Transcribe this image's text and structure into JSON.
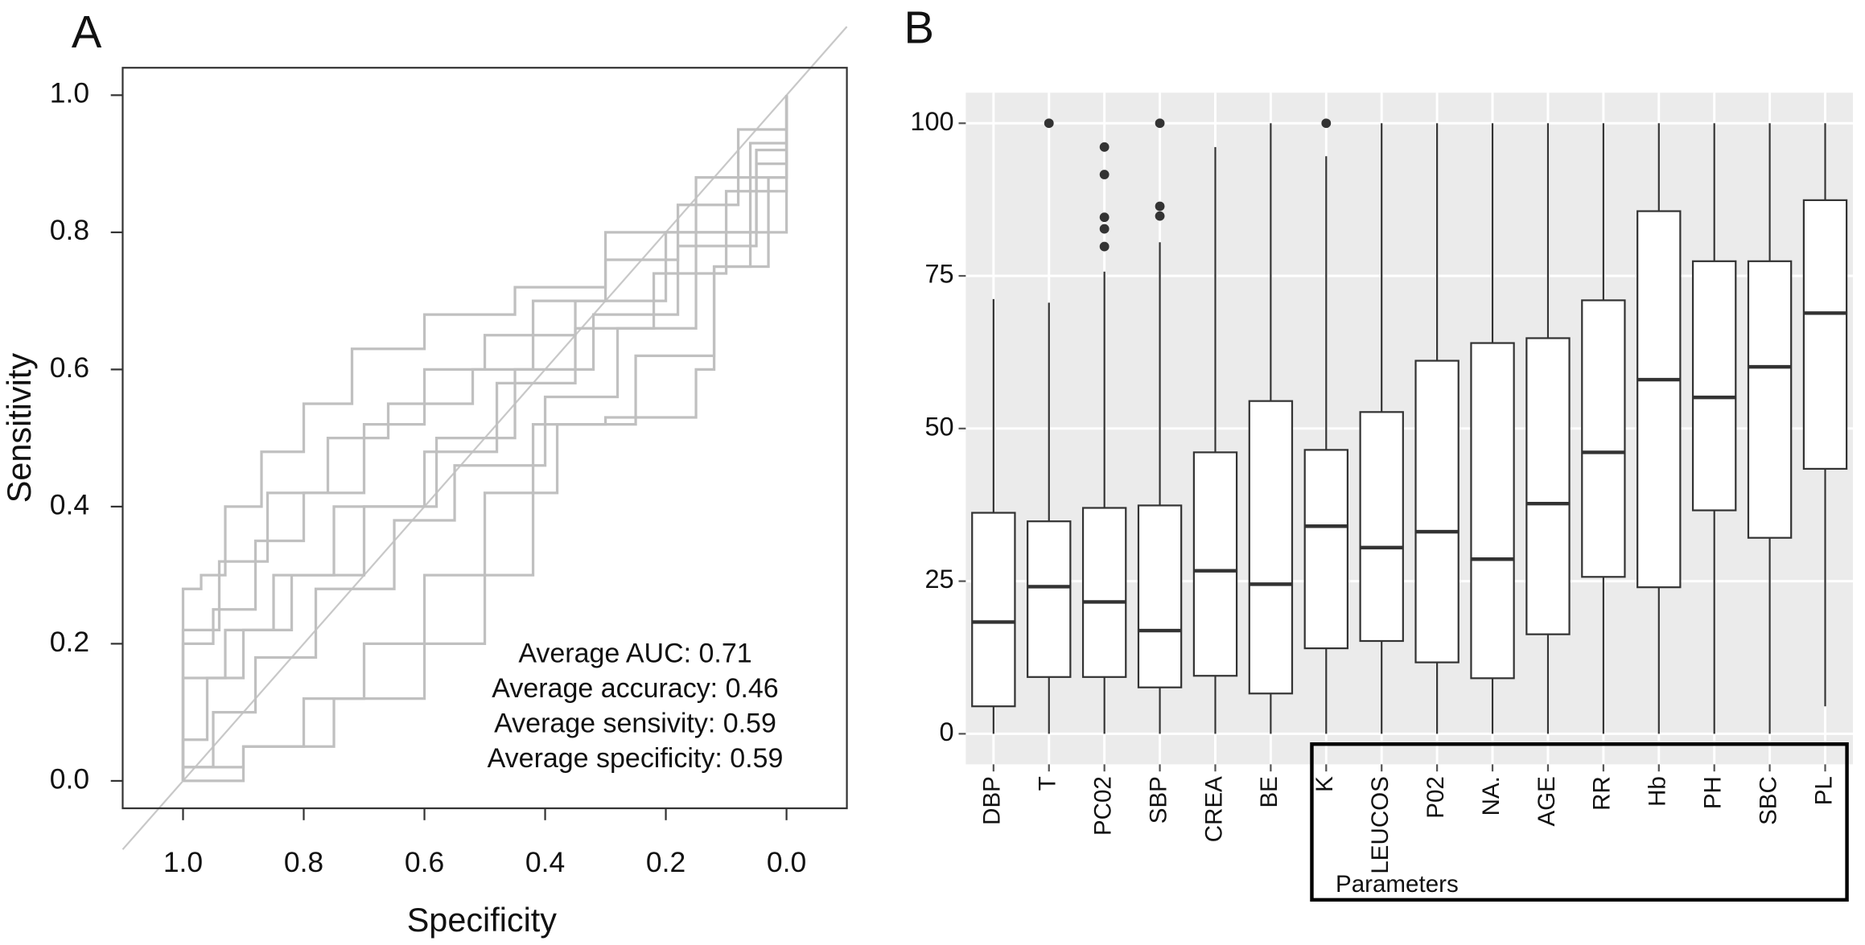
{
  "chart_data": [
    {
      "type": "roc",
      "panel_label": "A",
      "x_label": "Specificity",
      "y_label": "Sensitivity",
      "xlim": [
        1.1,
        -0.1
      ],
      "ylim": [
        -0.04,
        1.04
      ],
      "xticks": [
        {
          "value": 1,
          "label": "1.0"
        },
        0.8,
        0.6,
        0.4,
        0.2,
        {
          "value": 0,
          "label": "0.0"
        }
      ],
      "yticks": [
        {
          "value": 0,
          "label": "0.0"
        },
        0.2,
        0.4,
        0.6,
        0.8,
        {
          "value": 1,
          "label": "1.0"
        }
      ],
      "reference_line": true,
      "annotations": [
        "Average AUC: 0.71",
        "Average accuracy: 0.46",
        "Average sensivity: 0.59",
        "Average specificity: 0.59"
      ],
      "series": [
        {
          "color": "#c0c0c0",
          "x": [
            1,
            1,
            0.97,
            0.97,
            0.93,
            0.93,
            0.87,
            0.87,
            0.8,
            0.8,
            0.72,
            0.72,
            0.6,
            0.6,
            0.45,
            0.45,
            0.3,
            0.3,
            0.15,
            0.15,
            0,
            0
          ],
          "values": [
            0,
            0.28,
            0.28,
            0.3,
            0.3,
            0.4,
            0.4,
            0.48,
            0.48,
            0.55,
            0.55,
            0.63,
            0.63,
            0.68,
            0.68,
            0.72,
            0.72,
            0.8,
            0.8,
            0.88,
            0.88,
            1
          ]
        },
        {
          "color": "#c0c0c0",
          "x": [
            1,
            1,
            0.95,
            0.95,
            0.88,
            0.88,
            0.8,
            0.8,
            0.7,
            0.7,
            0.6,
            0.6,
            0.5,
            0.5,
            0.35,
            0.35,
            0.2,
            0.2,
            0.05,
            0.05,
            0,
            0
          ],
          "values": [
            0,
            0.2,
            0.2,
            0.25,
            0.25,
            0.35,
            0.35,
            0.42,
            0.42,
            0.52,
            0.52,
            0.6,
            0.6,
            0.65,
            0.65,
            0.7,
            0.7,
            0.8,
            0.8,
            0.92,
            0.92,
            1
          ]
        },
        {
          "color": "#c0c0c0",
          "x": [
            1,
            1,
            0.93,
            0.93,
            0.85,
            0.85,
            0.75,
            0.75,
            0.6,
            0.6,
            0.48,
            0.48,
            0.35,
            0.35,
            0.22,
            0.22,
            0.1,
            0.1,
            0,
            0
          ],
          "values": [
            0,
            0.15,
            0.15,
            0.22,
            0.22,
            0.3,
            0.3,
            0.4,
            0.4,
            0.48,
            0.48,
            0.58,
            0.58,
            0.66,
            0.66,
            0.74,
            0.74,
            0.86,
            0.86,
            1
          ]
        },
        {
          "color": "#c0c0c0",
          "x": [
            1,
            1,
            0.96,
            0.96,
            0.9,
            0.9,
            0.82,
            0.82,
            0.7,
            0.7,
            0.58,
            0.58,
            0.45,
            0.45,
            0.32,
            0.32,
            0.18,
            0.18,
            0.05,
            0.05,
            0,
            0
          ],
          "values": [
            0,
            0.06,
            0.06,
            0.15,
            0.15,
            0.22,
            0.22,
            0.3,
            0.3,
            0.4,
            0.4,
            0.5,
            0.5,
            0.6,
            0.6,
            0.68,
            0.68,
            0.78,
            0.78,
            0.9,
            0.9,
            1
          ]
        },
        {
          "color": "#c0c0c0",
          "x": [
            1,
            1,
            0.95,
            0.95,
            0.88,
            0.88,
            0.78,
            0.78,
            0.65,
            0.65,
            0.55,
            0.55,
            0.4,
            0.4,
            0.28,
            0.28,
            0.15,
            0.15,
            0,
            0
          ],
          "values": [
            0,
            0.02,
            0.02,
            0.1,
            0.1,
            0.18,
            0.18,
            0.28,
            0.28,
            0.38,
            0.38,
            0.46,
            0.46,
            0.56,
            0.56,
            0.66,
            0.66,
            0.8,
            0.8,
            1
          ]
        },
        {
          "color": "#c0c0c0",
          "x": [
            1,
            0.9,
            0.9,
            0.8,
            0.8,
            0.7,
            0.7,
            0.6,
            0.6,
            0.5,
            0.5,
            0.38,
            0.38,
            0.25,
            0.25,
            0.12,
            0.12,
            0.03,
            0.03,
            0,
            0
          ],
          "values": [
            0,
            0,
            0.05,
            0.05,
            0.12,
            0.12,
            0.2,
            0.2,
            0.3,
            0.3,
            0.42,
            0.42,
            0.52,
            0.52,
            0.62,
            0.62,
            0.75,
            0.75,
            0.88,
            0.88,
            1
          ]
        },
        {
          "color": "#c0c0c0",
          "x": [
            1,
            0.9,
            0.9,
            0.75,
            0.75,
            0.6,
            0.6,
            0.5,
            0.5,
            0.42,
            0.42,
            0.3,
            0.3,
            0.15,
            0.15,
            0.12,
            0.12,
            0.06,
            0.06,
            0,
            0
          ],
          "values": [
            0.02,
            0.02,
            0.05,
            0.05,
            0.12,
            0.12,
            0.2,
            0.2,
            0.3,
            0.3,
            0.52,
            0.52,
            0.53,
            0.53,
            0.6,
            0.6,
            0.75,
            0.75,
            0.93,
            0.93,
            1
          ]
        },
        {
          "color": "#c0c0c0",
          "x": [
            1,
            1,
            0.94,
            0.94,
            0.86,
            0.86,
            0.76,
            0.76,
            0.66,
            0.66,
            0.52,
            0.52,
            0.42,
            0.42,
            0.3,
            0.3,
            0.18,
            0.18,
            0.08,
            0.08,
            0,
            0
          ],
          "values": [
            0,
            0.22,
            0.22,
            0.32,
            0.32,
            0.42,
            0.42,
            0.5,
            0.5,
            0.55,
            0.55,
            0.6,
            0.6,
            0.7,
            0.7,
            0.76,
            0.76,
            0.84,
            0.84,
            0.95,
            0.95,
            1
          ]
        }
      ]
    },
    {
      "type": "box",
      "panel_label": "B",
      "x_label": "Parameters",
      "ylim": [
        -5,
        105
      ],
      "yticks": [
        0,
        25,
        50,
        75,
        100
      ],
      "grid": true,
      "background": "#ebebeb",
      "categories": [
        "DBP",
        "T",
        "PC02",
        "SBP",
        "CREA",
        "BE",
        "K",
        "LEUCOS",
        "P02",
        "NA.",
        "AGE",
        "RR",
        "Hb",
        "PH",
        "SBC",
        "PL"
      ],
      "min": [
        0,
        0,
        0,
        0,
        0,
        0,
        0,
        0,
        0,
        0,
        0,
        0,
        0,
        0,
        0,
        4.5
      ],
      "q1": [
        4.5,
        9.3,
        9.3,
        7.6,
        9.5,
        6.6,
        14,
        15.2,
        11.7,
        9.1,
        16.3,
        25.7,
        24,
        36.6,
        32.1,
        43.4
      ],
      "median": [
        18.3,
        24.1,
        21.6,
        16.9,
        26.7,
        24.5,
        34,
        30.5,
        33.1,
        28.6,
        37.7,
        46.1,
        58,
        55.1,
        60.1,
        68.9
      ],
      "q3": [
        36.2,
        34.8,
        37,
        37.4,
        46.1,
        54.5,
        46.5,
        52.7,
        61.1,
        64,
        64.8,
        71,
        85.6,
        77.4,
        77.4,
        87.4
      ],
      "max": [
        71.2,
        70.6,
        75.7,
        80.5,
        96.1,
        100,
        94.6,
        100,
        100,
        100,
        100,
        100,
        100,
        100,
        100,
        100
      ],
      "outliers": [
        [],
        [
          100
        ],
        [
          96.1,
          91.6,
          84.6,
          82.7,
          79.8
        ],
        [
          100,
          86.4,
          84.8
        ],
        [],
        [],
        [
          100
        ],
        [],
        [],
        [],
        [],
        [],
        [],
        [],
        [],
        []
      ]
    }
  ]
}
